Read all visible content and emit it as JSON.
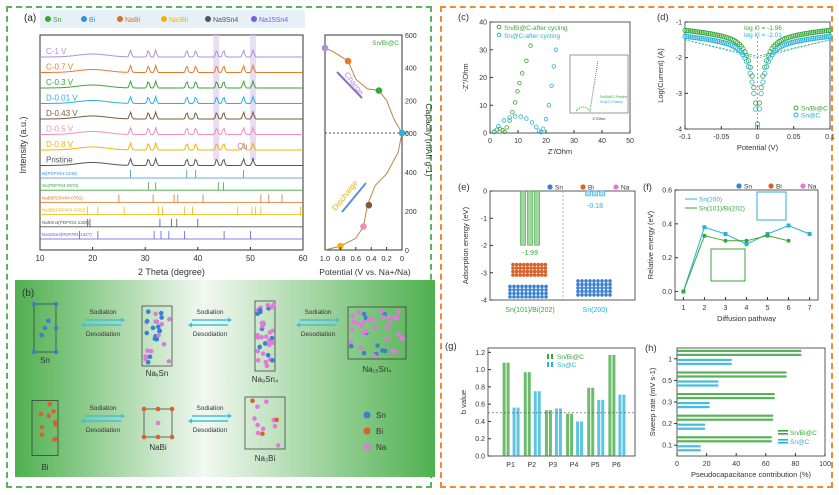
{
  "chart_data": [
    {
      "panel": "(a)",
      "type": "line",
      "title": "",
      "xlabel": "2 Theta (degree)",
      "ylabel": "Intensity (a.u.)",
      "xlim": [
        10,
        60
      ],
      "xticks": [
        "10",
        "20",
        "30",
        "40",
        "50",
        "60"
      ],
      "legend": [
        {
          "name": "Sn",
          "symbol": "club",
          "color": "#3aa63a"
        },
        {
          "name": "Bi",
          "symbol": "club",
          "color": "#3b8fd6"
        },
        {
          "name": "NaBi",
          "symbol": "diamond",
          "color": "#d9702a"
        },
        {
          "name": "Na3Bi",
          "symbol": "heart",
          "color": "#f2b400"
        },
        {
          "name": "Na9Sn4",
          "symbol": "triangle-down",
          "color": "#555555"
        },
        {
          "name": "Na15Sn4",
          "symbol": "triangle-up",
          "color": "#7b5ce0"
        }
      ],
      "series": [
        {
          "name": "C-1 V",
          "color": "#b08fd9"
        },
        {
          "name": "C-0.7 V",
          "color": "#e6792c"
        },
        {
          "name": "C-0.3 V",
          "color": "#3aa63a"
        },
        {
          "name": "D-0.01 V",
          "color": "#27b2d8"
        },
        {
          "name": "D-0.43 V",
          "color": "#7a5a3a"
        },
        {
          "name": "D-0.5 V",
          "color": "#f08fb8"
        },
        {
          "name": "D-0.8 V",
          "color": "#f2b400"
        },
        {
          "name": "Pristine",
          "color": "#555555"
        }
      ],
      "references": [
        {
          "name": "Bi(PDF#44-1246)",
          "color": "#3b8fd6",
          "peaks": [
            27.2,
            37.9,
            39.6,
            48.7
          ]
        },
        {
          "name": "Sn(PDF#04-0673)",
          "color": "#3aa63a",
          "peaks": [
            30.6,
            32.0,
            43.9,
            44.9
          ]
        },
        {
          "name": "NaBi(PDF#04-0701)",
          "color": "#d9702a",
          "peaks": [
            25.0,
            31.5,
            35.5,
            36.2,
            41.0,
            52.0,
            53.5,
            56.0
          ]
        },
        {
          "name": "Na3Bi(PDF#04-0302)",
          "color": "#f2b400",
          "peaks": [
            19.0,
            21.0,
            26.0,
            32.5,
            33.3,
            37.5,
            39.0,
            47.6,
            50.3,
            51.0,
            52.0,
            59.5
          ]
        },
        {
          "name": "Na9Sn4(PDF#31-1326)",
          "color": "#555555",
          "peaks": [
            19.0,
            19.5,
            32.8,
            35.0,
            36.0,
            40.0
          ]
        },
        {
          "name": "Na15Sn4(PDF#01-1327)",
          "color": "#5a5ae0",
          "peaks": [
            17.5,
            21.0,
            31.7,
            33.0,
            34.5,
            37.5,
            45.0,
            50.0
          ]
        }
      ],
      "annotations": [
        "Cu"
      ]
    },
    {
      "panel": "(a-right)",
      "type": "line",
      "label": "Sn/Bi@C",
      "xlabel": "Potential (V vs. Na+/Na)",
      "ylabel": "Capacity (mAh g-1)",
      "xlim": [
        1.0,
        0
      ],
      "xticks": [
        "1.0",
        "0.8",
        "0.6",
        "0.4",
        "0.2",
        "0"
      ],
      "yticks_top": [
        "600",
        "400",
        "200",
        "0"
      ],
      "yticks_bottom": [
        "600",
        "400",
        "200",
        "0"
      ],
      "arrows": [
        "Charge",
        "Discharge"
      ],
      "charge": {
        "x": [
          1.0,
          0.9,
          0.7,
          0.6,
          0.45,
          0.3,
          0.2,
          0.1,
          0.0
        ],
        "y": [
          520,
          500,
          440,
          330,
          270,
          260,
          200,
          80,
          0
        ]
      },
      "discharge": {
        "x": [
          1.0,
          0.8,
          0.6,
          0.5,
          0.45,
          0.35,
          0.2,
          0.05,
          0.0
        ],
        "y": [
          0,
          20,
          60,
          120,
          230,
          330,
          390,
          500,
          600
        ]
      },
      "markers": [
        {
          "branch": "charge",
          "x": 1.0,
          "y": 520,
          "color": "#b08fd9"
        },
        {
          "branch": "charge",
          "x": 0.7,
          "y": 440,
          "color": "#e6792c"
        },
        {
          "branch": "charge",
          "x": 0.3,
          "y": 260,
          "color": "#3aa63a"
        },
        {
          "branch": "charge",
          "x": 0.0,
          "y": 0,
          "color": "#27b2d8"
        },
        {
          "branch": "discharge",
          "x": 0.8,
          "y": 20,
          "color": "#f2b400"
        },
        {
          "branch": "discharge",
          "x": 0.5,
          "y": 120,
          "color": "#f08fb8"
        },
        {
          "branch": "discharge",
          "x": 0.43,
          "y": 230,
          "color": "#7a5a3a"
        }
      ]
    },
    {
      "panel": "(c)",
      "type": "scatter",
      "xlabel": "Z'/Ohm",
      "ylabel": "-Z''/Ohm",
      "xlim": [
        0,
        50
      ],
      "ylim": [
        0,
        40
      ],
      "xticks": [
        "0",
        "10",
        "20",
        "30",
        "40",
        "50"
      ],
      "yticks": [
        "0",
        "10",
        "20",
        "30",
        "40"
      ],
      "series": [
        {
          "name": "Sn/Bi@C-after cycling",
          "color": "#3aa63a",
          "x": [
            1.5,
            2.5,
            3.5,
            4.5,
            5.2,
            6.0,
            7.0,
            8.0,
            9.0,
            9.8,
            10.5,
            11.5,
            13.0,
            14.5
          ],
          "y": [
            0.3,
            1.2,
            1.5,
            1.0,
            0.4,
            2.0,
            4.5,
            7.5,
            11.0,
            15.0,
            18.0,
            21.5,
            26.0,
            31.5
          ]
        },
        {
          "name": "Sn@C-after cycling",
          "color": "#27b2d8",
          "x": [
            1.5,
            3.0,
            5.0,
            7.0,
            9.0,
            11.0,
            13.0,
            15.0,
            16.5,
            17.5,
            18.2,
            19.0,
            20.0,
            21.0,
            22.0,
            22.8,
            23.5
          ],
          "y": [
            0.5,
            2.5,
            4.5,
            5.6,
            6.0,
            5.9,
            5.2,
            3.8,
            2.2,
            0.8,
            0.3,
            1.5,
            5.0,
            10.0,
            17.0,
            24.0,
            30.0
          ]
        }
      ],
      "inset": {
        "xlabel": "Z'/Ohm",
        "ylabel": "-Z''/Ohm",
        "xlim": [
          0,
          20
        ],
        "ylim": [
          0,
          20
        ],
        "series": [
          {
            "name": "Sn/Bi@C-Pristine",
            "color": "#3aa63a"
          },
          {
            "name": "Sn@C-Pristine",
            "color": "#27b2d8"
          }
        ]
      }
    },
    {
      "panel": "(d)",
      "type": "line",
      "xlabel": "Potential (V)",
      "ylabel": "Log(Current) (A)",
      "xlim": [
        -0.1,
        0.1
      ],
      "ylim": [
        -4,
        -1
      ],
      "xticks": [
        "-0.1",
        "-0.05",
        "0.0",
        "0.05",
        "0.1"
      ],
      "yticks": [
        "-4",
        "-3",
        "-2",
        "-1"
      ],
      "annotations": [
        {
          "text": "log i0 = -1.96",
          "color": "#3aa63a"
        },
        {
          "text": "log i0 = -2.01",
          "color": "#27b2d8"
        }
      ],
      "series": [
        {
          "name": "Sn/Bi@C",
          "color": "#3aa63a",
          "log_i0": -1.96
        },
        {
          "name": "Sn@C",
          "color": "#27b2d8",
          "log_i0": -2.01
        }
      ]
    },
    {
      "panel": "(e)",
      "type": "bar",
      "ylabel": "Adsorption energy (eV)",
      "ylim": [
        -4,
        0
      ],
      "yticks": [
        "-4",
        "-3",
        "-2",
        "-1",
        "0"
      ],
      "categories": [
        "Sn(101)/Bi(202)",
        "Sn(200)"
      ],
      "values": [
        -1.99,
        -0.18
      ],
      "colors": [
        "#3aa63a",
        "#27b2d8"
      ],
      "data_labels": [
        "-1.99",
        "-0.18"
      ],
      "legend": [
        {
          "name": "Sn",
          "color": "#3b7fd0"
        },
        {
          "name": "Bi",
          "color": "#d9622a"
        },
        {
          "name": "Na",
          "color": "#e07ad8"
        }
      ]
    },
    {
      "panel": "(f)",
      "type": "line",
      "xlabel": "Diffusion pathway",
      "ylabel": "Relative energy (eV)",
      "xlim": [
        0.6,
        7.4
      ],
      "ylim": [
        -0.05,
        0.6
      ],
      "xticks": [
        "1",
        "2",
        "3",
        "4",
        "5",
        "6",
        "7"
      ],
      "yticks": [
        "0.0",
        "0.2",
        "0.4",
        "0.6"
      ],
      "legend": [
        {
          "name": "Sn",
          "color": "#3b7fd0"
        },
        {
          "name": "Bi",
          "color": "#d9622a"
        },
        {
          "name": "Na",
          "color": "#e07ad8"
        }
      ],
      "series": [
        {
          "name": "Sn(200)",
          "color": "#27b2d8",
          "marker": "square",
          "x": [
            1,
            2,
            3,
            4,
            5,
            6,
            7
          ],
          "y": [
            0.0,
            0.38,
            0.34,
            0.28,
            0.34,
            0.39,
            0.34
          ]
        },
        {
          "name": "Sn(101)/Bi(202)",
          "color": "#3aa63a",
          "marker": "circle",
          "x": [
            1,
            2,
            3,
            4,
            5,
            6
          ],
          "y": [
            0.0,
            0.33,
            0.3,
            0.3,
            0.33,
            0.3
          ]
        }
      ]
    },
    {
      "panel": "(g)",
      "type": "bar",
      "ylabel": "b value",
      "ylim": [
        0,
        1.25
      ],
      "yticks": [
        "0.0",
        "0.2",
        "0.4",
        "0.6",
        "0.8",
        "1.0",
        "1.2"
      ],
      "categories": [
        "P1",
        "P2",
        "P3",
        "P4",
        "P5",
        "P6"
      ],
      "reference_line": 0.5,
      "series": [
        {
          "name": "Sn/Bi@C",
          "color": "#3aa63a",
          "values": [
            1.08,
            0.97,
            0.53,
            0.49,
            0.79,
            1.17
          ]
        },
        {
          "name": "Sn@C",
          "color": "#27b2d8",
          "values": [
            0.56,
            0.75,
            0.55,
            0.4,
            0.65,
            0.71
          ]
        }
      ]
    },
    {
      "panel": "(h)",
      "type": "bar",
      "orientation": "horizontal",
      "xlabel": "Pseudocapacitance contribution (%)",
      "ylabel": "Sweep rate (mV s-1)",
      "xlim": [
        0,
        100
      ],
      "xticks": [
        "0",
        "20",
        "40",
        "60",
        "80",
        "100"
      ],
      "categories": [
        "0.1",
        "0.2",
        "0.3",
        "0.5",
        "1"
      ],
      "series": [
        {
          "name": "Sn/Bi@C",
          "color": "#3aa63a",
          "values": [
            64,
            65,
            66,
            74,
            84
          ]
        },
        {
          "name": "Sn@C",
          "color": "#27b2d8",
          "values": [
            16,
            19,
            22,
            28,
            37
          ]
        }
      ]
    }
  ],
  "labels": {
    "a": "(a)",
    "b": "(b)",
    "c": "(c)",
    "d": "(d)",
    "e": "(e)",
    "f": "(f)",
    "g": "(g)",
    "h": "(h)"
  },
  "schematic": {
    "sodiation": "Sodiation",
    "desodiation": "Desodiation",
    "sn_row": [
      "Sn",
      "NaₓSn",
      "Na₉Sn₄",
      "Na₁₅Sn₄"
    ],
    "bi_row": [
      "Bi",
      "NaBi",
      "Na₃Bi"
    ],
    "legend": [
      {
        "name": "Sn",
        "color": "#3b7fd0"
      },
      {
        "name": "Bi",
        "color": "#d9622a"
      },
      {
        "name": "Na",
        "color": "#e07ad8"
      }
    ]
  }
}
